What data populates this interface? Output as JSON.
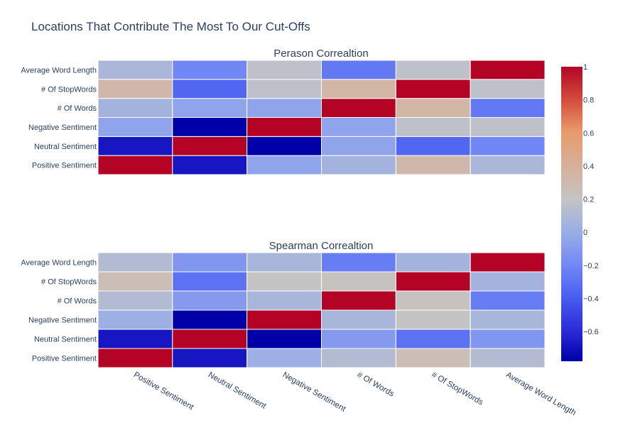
{
  "chart_data": {
    "type": "heatmap",
    "title": "Locations That Contribute The Most To Our Cut-Offs",
    "x_labels": [
      "Positive Sentiment",
      "Neutral Sentiment",
      "Negative Sentiment",
      "# Of Words",
      "# Of StopWords",
      "Average Word Length"
    ],
    "y_labels": [
      "Positive Sentiment",
      "Neutral Sentiment",
      "Negative Sentiment",
      "# Of Words",
      "# Of StopWords",
      "Average Word Length"
    ],
    "colorscale": {
      "name": "coolwarm",
      "zmin": -0.78,
      "zmax": 1,
      "ticks": [
        1,
        0.8,
        0.6,
        0.4,
        0.2,
        0,
        -0.2,
        -0.4,
        -0.6
      ],
      "tick_labels": [
        "1",
        "0.8",
        "0.6",
        "0.4",
        "0.2",
        "0",
        "−0.2",
        "−0.4",
        "−0.6"
      ]
    },
    "subplots": [
      {
        "title": "Perason Correaltion",
        "z": [
          [
            1,
            -0.68,
            -0.05,
            0.05,
            0.32,
            0.08
          ],
          [
            -0.68,
            1,
            -0.78,
            -0.05,
            -0.35,
            -0.2
          ],
          [
            -0.05,
            -0.78,
            1,
            -0.05,
            0.17,
            0.17
          ],
          [
            0.05,
            -0.05,
            -0.05,
            1,
            0.35,
            -0.27
          ],
          [
            0.32,
            -0.35,
            0.17,
            0.35,
            1,
            0.17
          ],
          [
            0.08,
            -0.2,
            0.17,
            -0.27,
            0.17,
            1
          ]
        ]
      },
      {
        "title": "Spearman Correaltion",
        "z": [
          [
            1,
            -0.68,
            0.02,
            0.12,
            0.26,
            0.12
          ],
          [
            -0.68,
            1,
            -0.78,
            -0.1,
            -0.3,
            -0.12
          ],
          [
            0.02,
            -0.78,
            1,
            0.07,
            0.2,
            0.07
          ],
          [
            0.12,
            -0.1,
            0.07,
            1,
            0.22,
            -0.25
          ],
          [
            0.26,
            -0.3,
            0.2,
            0.22,
            1,
            0.05
          ],
          [
            0.12,
            -0.12,
            0.07,
            -0.25,
            0.05,
            1
          ]
        ]
      }
    ]
  }
}
